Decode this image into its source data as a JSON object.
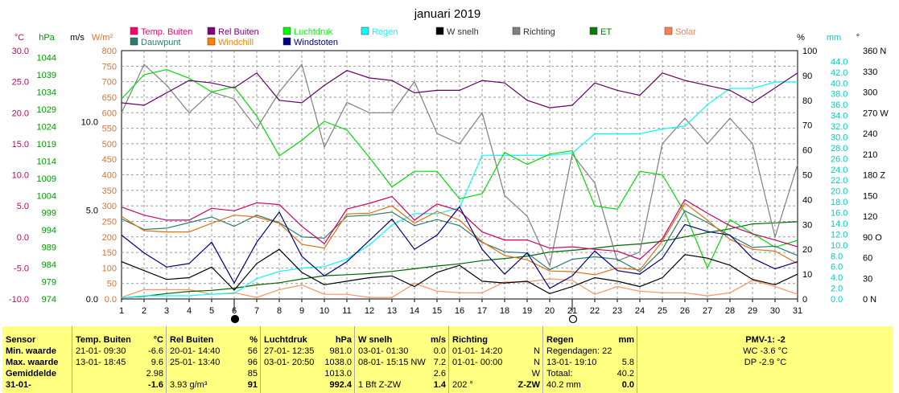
{
  "chart_data": {
    "type": "line",
    "title": "januari 2019",
    "x": [
      1,
      2,
      3,
      4,
      5,
      6,
      7,
      8,
      9,
      10,
      11,
      12,
      13,
      14,
      15,
      16,
      17,
      18,
      19,
      20,
      21,
      22,
      23,
      24,
      25,
      26,
      27,
      28,
      29,
      30,
      31
    ],
    "x_ticks": [
      "1",
      "2",
      "3",
      "4",
      "5",
      "6",
      "7",
      "8",
      "9",
      "10",
      "11",
      "12",
      "13",
      "14",
      "15",
      "16",
      "17",
      "18",
      "19",
      "20",
      "21",
      "22",
      "23",
      "24",
      "25",
      "26",
      "27",
      "28",
      "29",
      "30",
      "31"
    ],
    "grid": true,
    "legend_position": "top",
    "axes": {
      "temp": {
        "unit": "°C",
        "range": [
          -10,
          30
        ],
        "ticks": [
          "30.0",
          "25.0",
          "20.0",
          "15.0",
          "10.0",
          "5.0",
          "0.0",
          "-5.0",
          "-10.0"
        ],
        "color": "#cc0066"
      },
      "pressure": {
        "unit": "hPa",
        "range": [
          974,
          1046
        ],
        "ticks": [
          "1044",
          "1039",
          "1034",
          "1029",
          "1024",
          "1019",
          "1014",
          "1009",
          "1004",
          "999",
          "994",
          "989",
          "984",
          "979",
          "974"
        ],
        "color": "#009900"
      },
      "wind": {
        "unit": "m/s",
        "ticks": [
          "10.0",
          "5.0",
          "0.0"
        ],
        "color": "#000000"
      },
      "solar": {
        "unit": "W/m²",
        "range": [
          0,
          800
        ],
        "ticks": [
          "800",
          "750",
          "700",
          "650",
          "600",
          "550",
          "500",
          "450",
          "400",
          "350",
          "300",
          "250",
          "200",
          "150",
          "100",
          "50",
          "0.0"
        ],
        "color": "#e07030"
      },
      "humidity": {
        "unit": "%",
        "range": [
          0,
          100
        ],
        "ticks": [
          "100",
          "90",
          "80",
          "70",
          "60",
          "50",
          "40",
          "30",
          "20",
          "10",
          "0"
        ],
        "color": "#000000"
      },
      "rain": {
        "unit": "mm",
        "range": [
          0,
          46
        ],
        "ticks": [
          "44.0",
          "42.0",
          "40.0",
          "38.0",
          "36.0",
          "34.0",
          "32.0",
          "30.0",
          "28.0",
          "26.0",
          "24.0",
          "22.0",
          "20.0",
          "18.0",
          "16.0",
          "14.0",
          "12.0",
          "10.0",
          "8.0",
          "6.0",
          "4.0",
          "2.0",
          "0.0"
        ],
        "color": "#00cccc"
      },
      "direction": {
        "unit": "°",
        "range": [
          0,
          360
        ],
        "ticks": [
          "360 N",
          "330",
          "300",
          "270 W",
          "240",
          "210",
          "180 Z",
          "150",
          "120",
          "90 O",
          "60",
          "30",
          "0 N"
        ],
        "color": "#000000"
      }
    },
    "series": [
      {
        "name": "Temp. Buiten",
        "color": "#cc0066",
        "axis": "temp",
        "values": [
          4.8,
          3.5,
          2.7,
          2.7,
          4.6,
          4.2,
          5.5,
          5.2,
          1.7,
          -1.1,
          4.5,
          5.4,
          6.5,
          2.7,
          5.3,
          4.2,
          0.8,
          -0.5,
          -0.5,
          -1.8,
          -1.6,
          -2.0,
          -2.3,
          -3.6,
          -0.3,
          6.0,
          3.8,
          1.8,
          0.5,
          -0.5,
          -1.6
        ]
      },
      {
        "name": "Dauwpunt",
        "color": "#2e7a73",
        "axis": "temp",
        "values": [
          2.9,
          1.2,
          1.4,
          2.3,
          3.2,
          1.7,
          3.5,
          2.3,
          0.0,
          -0.2,
          3.3,
          3.5,
          4.0,
          1.8,
          2.8,
          1.8,
          -0.9,
          -2.4,
          -2.6,
          -5.3,
          -3.6,
          -3.2,
          -3.6,
          -5.6,
          -2.0,
          4.2,
          2.3,
          0.2,
          -1.7,
          -1.5,
          -3.0
        ]
      },
      {
        "name": "Rel Buiten",
        "color": "#660066",
        "axis": "humidity",
        "values": [
          79,
          78,
          83,
          88,
          87,
          85,
          91,
          80,
          79,
          86,
          92,
          89,
          88,
          83,
          84,
          84,
          88,
          87,
          80,
          77,
          78,
          87,
          84,
          82,
          91,
          88,
          86,
          84,
          79,
          85,
          91
        ]
      },
      {
        "name": "Windchill",
        "color": "#e07010",
        "axis": "temp",
        "values": [
          3.3,
          1.0,
          0.8,
          0.8,
          2.2,
          3.5,
          3.2,
          2.2,
          -1.2,
          -1.8,
          3.7,
          3.8,
          5.0,
          2.2,
          4.1,
          2.7,
          -0.8,
          -3.0,
          -3.7,
          -5.5,
          -5.6,
          -6.1,
          -5.0,
          -5.3,
          -0.7,
          5.4,
          2.7,
          -0.4,
          -2.0,
          -2.3,
          -4.3
        ]
      },
      {
        "name": "Luchtdruk",
        "color": "#00dd00",
        "axis": "pressure",
        "values": [
          1032.0,
          1039.0,
          1040.5,
          1038.0,
          1034.0,
          1035.5,
          1027.0,
          1015.5,
          1020.0,
          1025.5,
          1023.0,
          1015.0,
          1006.5,
          1011.0,
          1011.0,
          1003.0,
          1004.5,
          1016.5,
          1013.0,
          1016.0,
          1017.0,
          1001.0,
          1000.0,
          1011.0,
          1010.0,
          999.0,
          983.0,
          997.0,
          993.0,
          989.0,
          991.0
        ]
      },
      {
        "name": "Windstoten",
        "color": "#000080",
        "axis": "wind",
        "values": [
          3.6,
          2.6,
          1.8,
          2.0,
          3.2,
          0.9,
          3.2,
          4.9,
          2.4,
          1.3,
          2.1,
          3.3,
          4.5,
          2.8,
          3.6,
          5.2,
          2.8,
          1.4,
          2.6,
          0.6,
          1.3,
          2.7,
          1.6,
          1.4,
          2.3,
          4.2,
          3.8,
          3.6,
          2.3,
          1.7,
          2.1
        ]
      },
      {
        "name": "Regen",
        "color": "#00ffff",
        "axis": "rain",
        "values": [
          0.2,
          0.6,
          0.6,
          0.6,
          0.9,
          1.0,
          3.8,
          5.1,
          5.7,
          6.0,
          7.4,
          10.0,
          13.7,
          15.8,
          15.8,
          16.9,
          26.6,
          26.6,
          26.6,
          26.6,
          27.0,
          30.6,
          30.6,
          30.6,
          31.5,
          32.0,
          36.0,
          39.0,
          39.0,
          40.2,
          40.2
        ]
      },
      {
        "name": "W snelh",
        "color": "#000000",
        "axis": "wind",
        "values": [
          2.1,
          1.6,
          1.1,
          1.2,
          1.8,
          0.5,
          2.0,
          2.8,
          1.5,
          0.8,
          1.0,
          1.2,
          1.3,
          0.7,
          1.5,
          1.9,
          1.0,
          0.9,
          1.0,
          0.3,
          0.7,
          1.2,
          1.0,
          0.7,
          1.2,
          2.5,
          2.3,
          1.9,
          1.1,
          0.8,
          1.4
        ]
      },
      {
        "name": "Richting",
        "color": "#808080",
        "axis": "direction",
        "values": [
          270,
          340,
          310,
          270,
          300,
          290,
          247,
          300,
          340,
          220,
          285,
          270,
          270,
          315,
          240,
          225,
          270,
          150,
          120,
          48,
          210,
          168,
          55,
          68,
          225,
          262,
          225,
          262,
          225,
          90,
          195
        ]
      },
      {
        "name": "ET",
        "color": "#006600",
        "axis": "rain",
        "values": [
          0.2,
          0.5,
          1.0,
          1.4,
          1.6,
          2.0,
          2.6,
          3.0,
          3.7,
          4.3,
          4.5,
          4.7,
          5.1,
          5.6,
          6.1,
          6.5,
          7.1,
          7.5,
          7.9,
          8.7,
          9.0,
          9.4,
          9.9,
          10.2,
          10.7,
          11.5,
          12.3,
          13.0,
          13.9,
          14.1,
          14.3
        ]
      },
      {
        "name": "Solar",
        "color": "#ff9060",
        "axis": "solar",
        "values": [
          5,
          30,
          30,
          30,
          15,
          20,
          5,
          30,
          45,
          15,
          15,
          5,
          5,
          50,
          25,
          20,
          20,
          55,
          55,
          65,
          60,
          15,
          40,
          25,
          20,
          20,
          10,
          20,
          60,
          40,
          15
        ]
      }
    ],
    "moon_phases": [
      {
        "day": 6,
        "phase": "new-moon"
      },
      {
        "day": 21,
        "phase": "full-moon"
      }
    ]
  },
  "legend_items": [
    {
      "label": "Temp. Buiten",
      "color": "#ff0066"
    },
    {
      "label": "Rel Buiten",
      "color": "#800080"
    },
    {
      "label": "Luchtdruk",
      "color": "#00ff00"
    },
    {
      "label": "Regen",
      "color": "#00ffff"
    },
    {
      "label": "W snelh",
      "color": "#000000"
    },
    {
      "label": "Richting",
      "color": "#808080"
    },
    {
      "label": "ET",
      "color": "#008000"
    },
    {
      "label": "Solar",
      "color": "#ff8050"
    },
    {
      "label": "Dauwpunt",
      "color": "#2e7a73"
    },
    {
      "label": "Windchill",
      "color": "#ff8000"
    },
    {
      "label": "Windstoten",
      "color": "#000080"
    }
  ],
  "table": {
    "row_labels": [
      "Sensor",
      "Min. waarde",
      "Max. waarde",
      "Gemiddelde",
      "31-01-"
    ],
    "temp": {
      "header": "Temp. Buiten",
      "unit": "°C",
      "min_time": "21-01- 09:30",
      "min_val": "-6.6",
      "max_time": "13-01- 18:45",
      "max_val": "9.6",
      "avg": "2.98",
      "cur": "-1.6"
    },
    "rel": {
      "header": "Rel Buiten",
      "unit": "%",
      "min_time": "20-01- 14:40",
      "min_val": "56",
      "max_time": "25-01- 13:40",
      "max_val": "96",
      "avg": "85",
      "cur_extra": "3.93 g/m³",
      "cur": "91"
    },
    "press": {
      "header": "Luchtdruk",
      "unit": "hPa",
      "min_time": "27-01- 12:35",
      "min_val": "981.0",
      "max_time": "03-01- 20:50",
      "max_val": "1038.0",
      "avg": "1013.0",
      "cur": "992.4"
    },
    "wind": {
      "header": "W snelh",
      "unit": "m/s",
      "min_time": "03-01- 01:30",
      "min_val": "0.0",
      "max_time": "08-01- 15:15 NW",
      "max_val": "7.2",
      "avg": "2.6",
      "cur_extra": "1 Bft Z-ZW",
      "cur": "1.4"
    },
    "dir": {
      "header": "Richting",
      "min_time": "01-01- 14:20",
      "min_val": "N",
      "max_time": "01-01- 00:00",
      "max_val": "N",
      "avg": "W",
      "cur_extra": "202 °",
      "cur": "Z-ZW"
    },
    "rain": {
      "header": "Regen",
      "unit": "mm",
      "min_label": "Regendagen: 22",
      "max_time": "13-01- 19:10",
      "max_val": "5.8",
      "avg_label": "Totaal:",
      "avg_val": "40.2",
      "cur_extra": "40.2 mm",
      "cur": "0.0"
    },
    "pmv": {
      "header": "PMV-1: -2",
      "wc": "WC -3.6 °C",
      "dp": "DP -2.9 °C"
    }
  }
}
